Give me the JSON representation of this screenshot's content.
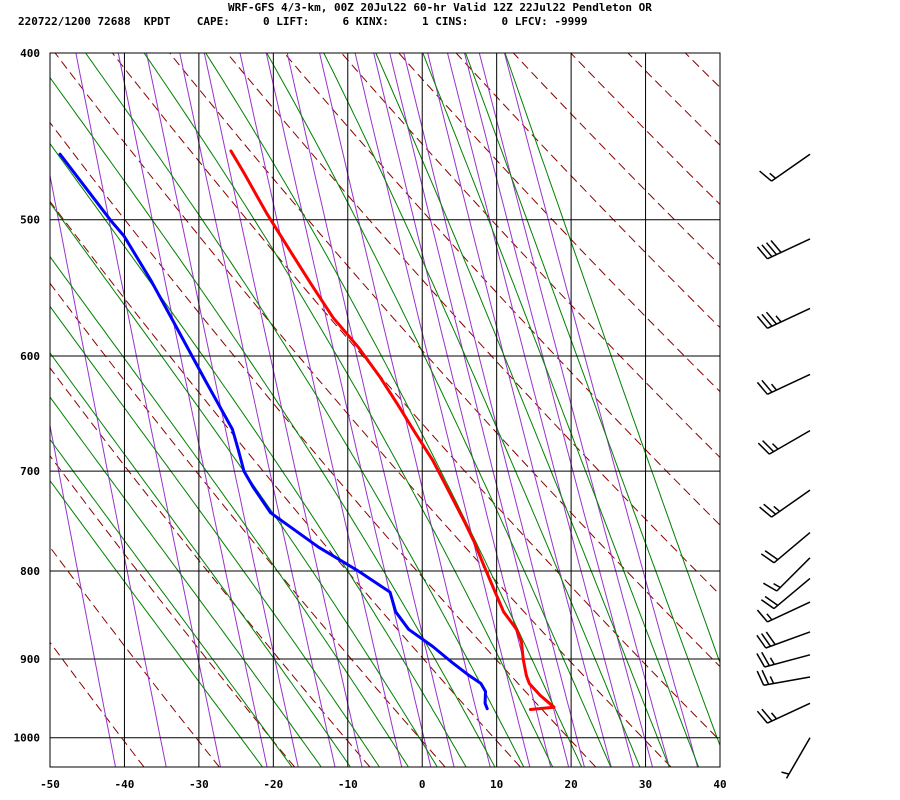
{
  "header": {
    "title": "WRF-GFS 4/3-km, 00Z 20Jul22 60-hr Valid 12Z 22Jul22 Pendleton OR",
    "info": "220722/1200 72688  KPDT    CAPE:     0 LIFT:     6 KINX:     1 CINS:     0 LFCV: -9999"
  },
  "colors": {
    "temperature": "#ff0000",
    "dewpoint": "#0000ff",
    "dry_adiabats": "#8b0000",
    "moist_adiabats": "#008000",
    "mixing_ratio": "#9933cc",
    "grid": "#000000"
  },
  "chart_data": {
    "type": "line",
    "title": "WRF-GFS 4/3-km, 00Z 20Jul22 60-hr Valid 12Z 22Jul22 Pendleton OR",
    "xlabel": "",
    "ylabel": "",
    "x_ticks": [
      "-50",
      "-40",
      "-30",
      "-20",
      "-10",
      "0",
      "10",
      "20",
      "30",
      "40"
    ],
    "y_ticks": [
      "400",
      "500",
      "600",
      "700",
      "800",
      "900",
      "1000"
    ],
    "xlim": [
      -50,
      40
    ],
    "ylim": [
      1040,
      400
    ],
    "y_scale": "log",
    "grid": true,
    "series": [
      {
        "color": "#ff0000",
        "points": [
          [
            15.3,
            963
          ],
          [
            18.5,
            960
          ],
          [
            16.8,
            945
          ],
          [
            15.5,
            930
          ],
          [
            15.2,
            920
          ],
          [
            15.0,
            900
          ],
          [
            15.0,
            880
          ],
          [
            14.5,
            865
          ],
          [
            13.0,
            845
          ],
          [
            12.0,
            820
          ],
          [
            11.0,
            795
          ],
          [
            10.0,
            770
          ],
          [
            9.0,
            750
          ],
          [
            7.0,
            715
          ],
          [
            5.5,
            690
          ],
          [
            3.5,
            665
          ],
          [
            1.5,
            640
          ],
          [
            -0.5,
            617
          ],
          [
            -3.0,
            593
          ],
          [
            -6.0,
            570
          ],
          [
            -8.5,
            545
          ],
          [
            -11.0,
            520
          ],
          [
            -13.5,
            496
          ],
          [
            -16.0,
            470
          ],
          [
            -17.5,
            456
          ]
        ]
      },
      {
        "color": "#0000ff",
        "points": [
          [
            9.5,
            962
          ],
          [
            9.3,
            955
          ],
          [
            9.5,
            940
          ],
          [
            9.0,
            930
          ],
          [
            7.5,
            920
          ],
          [
            5.5,
            905
          ],
          [
            3.0,
            885
          ],
          [
            0.0,
            865
          ],
          [
            -1.5,
            845
          ],
          [
            -2.0,
            823
          ],
          [
            -6.0,
            800
          ],
          [
            -11.0,
            775
          ],
          [
            -17.0,
            740
          ],
          [
            -19.0,
            715
          ],
          [
            -20.0,
            700
          ],
          [
            -20.5,
            680
          ],
          [
            -21.0,
            662
          ],
          [
            -24.0,
            620
          ],
          [
            -27.5,
            573
          ],
          [
            -30.0,
            542
          ],
          [
            -33.0,
            511
          ],
          [
            -34.5,
            501
          ],
          [
            -40.5,
            458
          ]
        ]
      }
    ],
    "winds": [
      {
        "pressure": 458,
        "direction": 235,
        "speed": 15
      },
      {
        "pressure": 513,
        "direction": 245,
        "speed": 40
      },
      {
        "pressure": 563,
        "direction": 245,
        "speed": 35
      },
      {
        "pressure": 615,
        "direction": 245,
        "speed": 25
      },
      {
        "pressure": 663,
        "direction": 240,
        "speed": 25
      },
      {
        "pressure": 718,
        "direction": 235,
        "speed": 25
      },
      {
        "pressure": 760,
        "direction": 230,
        "speed": 20
      },
      {
        "pressure": 786,
        "direction": 225,
        "speed": 15
      },
      {
        "pressure": 808,
        "direction": 230,
        "speed": 20
      },
      {
        "pressure": 834,
        "direction": 245,
        "speed": 15
      },
      {
        "pressure": 868,
        "direction": 250,
        "speed": 30
      },
      {
        "pressure": 895,
        "direction": 255,
        "speed": 25
      },
      {
        "pressure": 922,
        "direction": 260,
        "speed": 25
      },
      {
        "pressure": 955,
        "direction": 245,
        "speed": 25
      },
      {
        "pressure": 1000,
        "direction": 210,
        "speed": 5
      }
    ]
  }
}
